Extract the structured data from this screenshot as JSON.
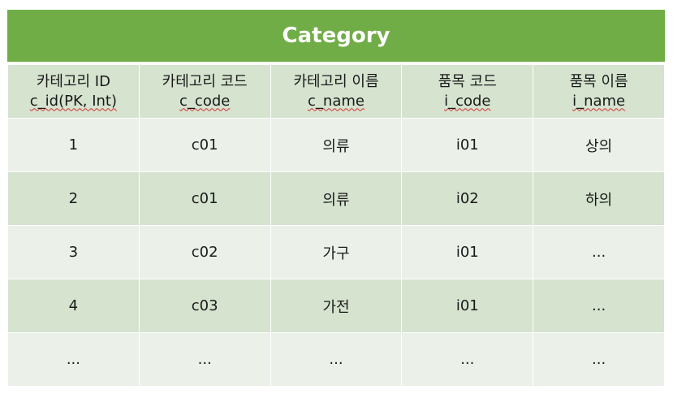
{
  "title": "Category",
  "columns": [
    {
      "label": "카테고리 ID",
      "field": "c_id(PK, Int)"
    },
    {
      "label": "카테고리 코드",
      "field": "c_code"
    },
    {
      "label": "카테고리 이름",
      "field": "c_name"
    },
    {
      "label": "품목 코드",
      "field": "i_code"
    },
    {
      "label": "품목 이름",
      "field": "i_name"
    }
  ],
  "rows": [
    [
      "1",
      "c01",
      "의류",
      "i01",
      "상의"
    ],
    [
      "2",
      "c01",
      "의류",
      "i02",
      "하의"
    ],
    [
      "3",
      "c02",
      "가구",
      "i01",
      "..."
    ],
    [
      "4",
      "c03",
      "가전",
      "i01",
      "..."
    ],
    [
      "...",
      "...",
      "...",
      "...",
      "..."
    ]
  ],
  "colors": {
    "title_bg": "#70ad47",
    "header_bg": "#d5e3cf",
    "row_light": "#ebf1e9",
    "row_dark": "#d5e3cf"
  }
}
